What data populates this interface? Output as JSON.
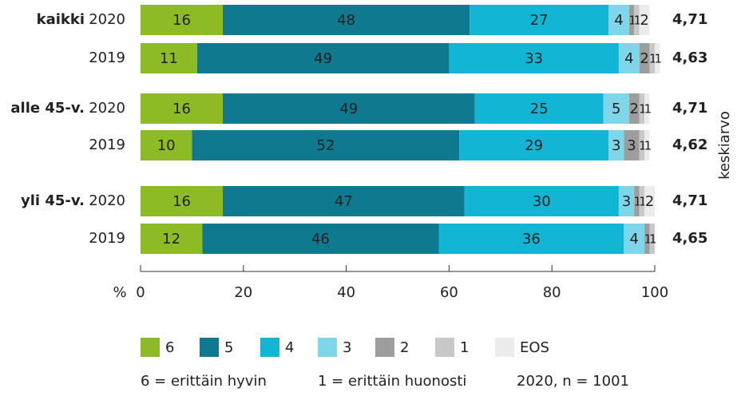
{
  "chart_data": {
    "type": "stacked-barh",
    "groups": [
      "kaikki",
      "alle 45-v.",
      "yli 45-v."
    ],
    "categories": [
      "2020",
      "2019",
      "2020",
      "2019",
      "2020",
      "2019"
    ],
    "series": [
      {
        "name": "6",
        "color": "#8cbb26",
        "values": [
          16,
          11,
          16,
          10,
          16,
          12
        ]
      },
      {
        "name": "5",
        "color": "#0f7a8f",
        "values": [
          48,
          49,
          49,
          52,
          47,
          46
        ]
      },
      {
        "name": "4",
        "color": "#13b5d4",
        "values": [
          27,
          33,
          25,
          29,
          30,
          36
        ]
      },
      {
        "name": "3",
        "color": "#7fd6e8",
        "values": [
          4,
          4,
          5,
          3,
          3,
          4
        ]
      },
      {
        "name": "2",
        "color": "#9d9d9d",
        "values": [
          1,
          2,
          2,
          3,
          1,
          1
        ]
      },
      {
        "name": "1",
        "color": "#c8c8c8",
        "values": [
          1,
          1,
          1,
          1,
          1,
          1
        ]
      },
      {
        "name": "EOS",
        "color": "#ebebeb",
        "values": [
          2,
          1,
          1,
          1,
          2,
          null
        ]
      }
    ],
    "means": [
      4.71,
      4.63,
      4.71,
      4.62,
      4.71,
      4.65
    ],
    "mean_labels": [
      "4,71",
      "4,63",
      "4,71",
      "4,62",
      "4,71",
      "4,65"
    ],
    "mean_axis_label": "keskiarvo",
    "xlabel": "%",
    "xlim": [
      0,
      100
    ],
    "xticks": [
      0,
      20,
      40,
      60,
      80,
      100
    ],
    "notes": [
      "6 = erittäin hyvin",
      "1 = erittäin huonosti",
      "2020, n = 1001"
    ]
  }
}
